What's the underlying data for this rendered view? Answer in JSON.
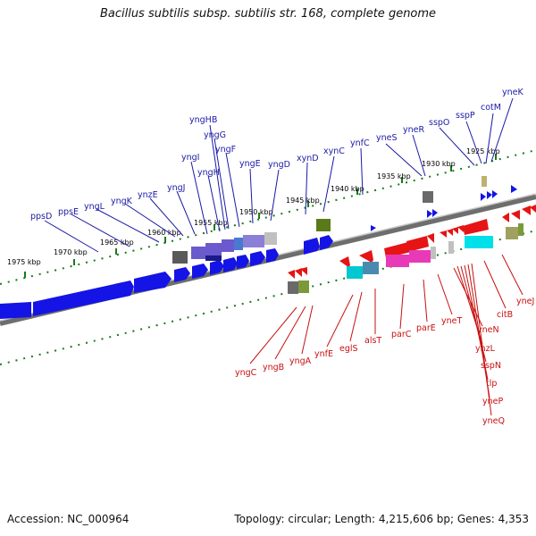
{
  "title": "Bacillus subtilis subsp. subtilis str. 168, complete genome",
  "footer": {
    "accession": "Accession: NC_000964",
    "summary": "Topology: circular; Length: 4,215,606 bp; Genes: 4,353"
  },
  "colors": {
    "forward_label": "#1a1aa6",
    "reverse_label": "#c81010",
    "scale_tick": "#1a7a1a",
    "backbone": "#808080"
  },
  "scale_labels": [
    "1975 kbp",
    "1970 kbp",
    "1965 kbp",
    "1960 kbp",
    "1955 kbp",
    "1950 kbp",
    "1945 kbp",
    "1940 kbp",
    "1935 kbp",
    "1930 kbp",
    "1925 kbp"
  ],
  "forward_genes": [
    "ppsD",
    "ppsE",
    "yngL",
    "yngK",
    "ynzE",
    "yngJ",
    "yngI",
    "yngHB",
    "yngH",
    "yngG",
    "yngF",
    "yngE",
    "yngD",
    "xynD",
    "xynC",
    "ynfC",
    "yneS",
    "yneR",
    "sspO",
    "sspP",
    "cotM",
    "yneK"
  ],
  "reverse_genes": [
    "yngC",
    "yngB",
    "yngA",
    "ynfE",
    "eglS",
    "alsT",
    "parC",
    "parE",
    "yneT",
    "yneN",
    "ynzL",
    "sspN",
    "tlp",
    "yneP",
    "yneQ",
    "citB",
    "yneJ"
  ]
}
